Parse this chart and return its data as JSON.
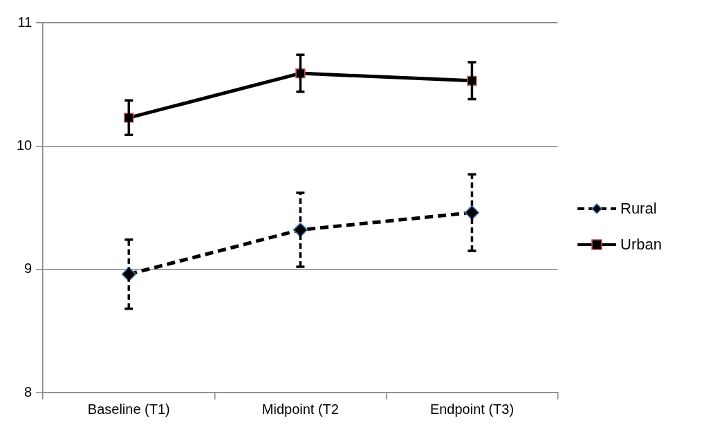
{
  "chart_data": {
    "type": "line",
    "categories": [
      "Baseline (T1)",
      "Midpoint (T2",
      "Endpoint (T3)"
    ],
    "series": [
      {
        "name": "Rural",
        "color": "#000000",
        "values": [
          8.96,
          9.32,
          9.46
        ],
        "errors": [
          0.28,
          0.3,
          0.31
        ],
        "marker": "diamond",
        "line_style": "dashed"
      },
      {
        "name": "Urban",
        "color": "#000000",
        "values": [
          10.23,
          10.59,
          10.53
        ],
        "errors": [
          0.14,
          0.15,
          0.15
        ],
        "marker": "square",
        "line_style": "solid"
      }
    ],
    "ylim": [
      8,
      11
    ],
    "yticks": [
      8,
      9,
      10,
      11
    ],
    "grid": "y",
    "legend": "right"
  }
}
